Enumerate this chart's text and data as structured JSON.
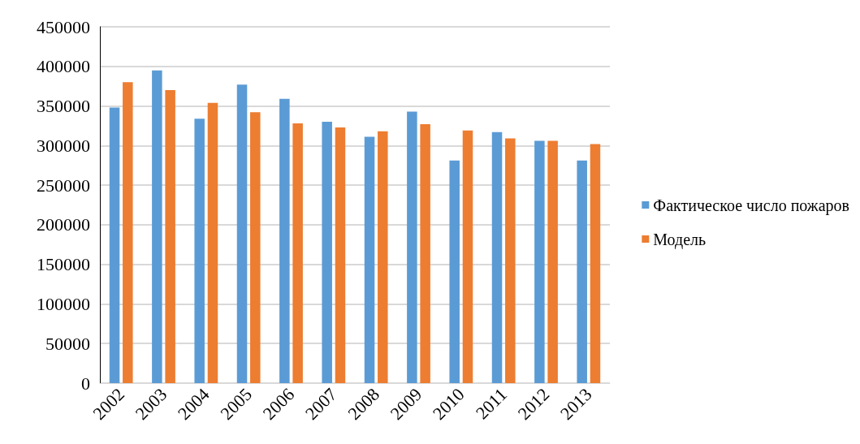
{
  "chart_data": {
    "type": "bar",
    "categories": [
      "2002",
      "2003",
      "2004",
      "2005",
      "2006",
      "2007",
      "2008",
      "2009",
      "2010",
      "2011",
      "2012",
      "2013"
    ],
    "series": [
      {
        "name": "Фактическое число пожаров",
        "color": "#5b9bd5",
        "values": [
          348000,
          395000,
          334000,
          377000,
          359000,
          330000,
          311000,
          343000,
          281000,
          317000,
          306000,
          281000
        ]
      },
      {
        "name": "Модель",
        "color": "#ed7d31",
        "values": [
          380000,
          370000,
          354000,
          342000,
          328000,
          323000,
          318000,
          327000,
          319000,
          309000,
          306000,
          302000
        ]
      }
    ],
    "ylim": [
      0,
      450000
    ],
    "yticks": [
      0,
      50000,
      100000,
      150000,
      200000,
      250000,
      300000,
      350000,
      400000,
      450000
    ],
    "grid": "y",
    "legend": "right"
  }
}
